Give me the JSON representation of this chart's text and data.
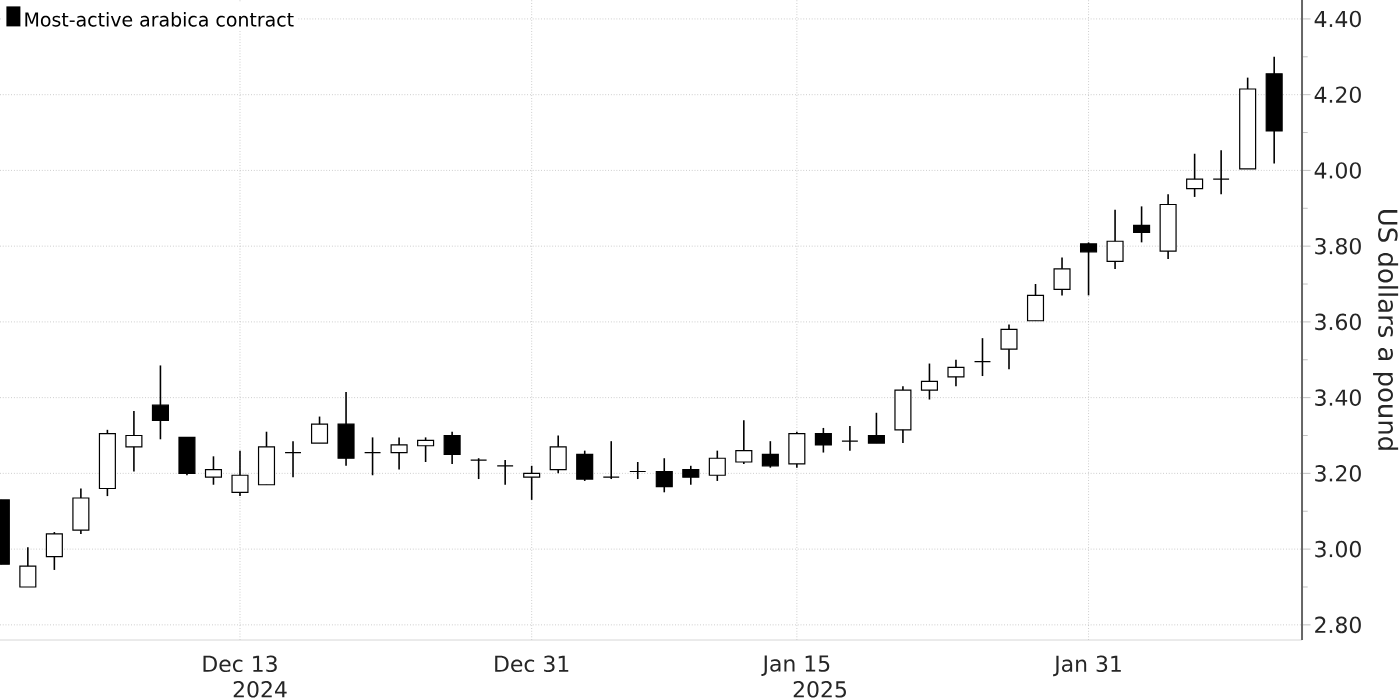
{
  "chart_data": {
    "type": "candlestick",
    "ylabel": "US dollars a pound",
    "categories": [
      null,
      null,
      null,
      null,
      null,
      null,
      null,
      null,
      null,
      "Dec 13",
      null,
      null,
      null,
      null,
      null,
      null,
      null,
      null,
      null,
      null,
      "Dec 31",
      null,
      null,
      null,
      null,
      null,
      null,
      null,
      null,
      null,
      "Jan 15",
      null,
      null,
      null,
      null,
      null,
      null,
      null,
      null,
      null,
      null,
      "Jan 31",
      null,
      null,
      null,
      null,
      null,
      null,
      null
    ],
    "series": [
      {
        "name": "Most-active arabica contract",
        "color": "#000000",
        "ohlc": [
          [
            3.13,
            3.13,
            2.96,
            2.96
          ],
          [
            2.9,
            3.005,
            2.9,
            2.955
          ],
          [
            2.98,
            3.045,
            2.945,
            3.04
          ],
          [
            3.05,
            3.16,
            3.04,
            3.135
          ],
          [
            3.16,
            3.315,
            3.14,
            3.305
          ],
          [
            3.27,
            3.365,
            3.205,
            3.3
          ],
          [
            3.38,
            3.485,
            3.29,
            3.34
          ],
          [
            3.295,
            3.295,
            3.195,
            3.2
          ],
          [
            3.19,
            3.245,
            3.17,
            3.21
          ],
          [
            3.15,
            3.26,
            3.14,
            3.195
          ],
          [
            3.17,
            3.31,
            3.17,
            3.27
          ],
          [
            3.255,
            3.285,
            3.19,
            3.255
          ],
          [
            3.28,
            3.35,
            3.28,
            3.33
          ],
          [
            3.33,
            3.415,
            3.22,
            3.24
          ],
          [
            3.255,
            3.295,
            3.195,
            3.255
          ],
          [
            3.255,
            3.295,
            3.21,
            3.275
          ],
          [
            3.273,
            3.295,
            3.23,
            3.287
          ],
          [
            3.3,
            3.31,
            3.225,
            3.25
          ],
          [
            3.235,
            3.24,
            3.185,
            3.235
          ],
          [
            3.22,
            3.235,
            3.17,
            3.22
          ],
          [
            3.19,
            3.22,
            3.13,
            3.2
          ],
          [
            3.21,
            3.3,
            3.2,
            3.27
          ],
          [
            3.25,
            3.26,
            3.18,
            3.185
          ],
          [
            3.19,
            3.285,
            3.185,
            3.19
          ],
          [
            3.205,
            3.23,
            3.185,
            3.205
          ],
          [
            3.205,
            3.24,
            3.15,
            3.165
          ],
          [
            3.21,
            3.22,
            3.17,
            3.19
          ],
          [
            3.195,
            3.26,
            3.18,
            3.24
          ],
          [
            3.23,
            3.34,
            3.225,
            3.26
          ],
          [
            3.25,
            3.285,
            3.215,
            3.22
          ],
          [
            3.225,
            3.31,
            3.215,
            3.305
          ],
          [
            3.305,
            3.32,
            3.255,
            3.275
          ],
          [
            3.285,
            3.325,
            3.26,
            3.285
          ],
          [
            3.3,
            3.36,
            3.28,
            3.28
          ],
          [
            3.315,
            3.43,
            3.28,
            3.42
          ],
          [
            3.42,
            3.49,
            3.395,
            3.443
          ],
          [
            3.455,
            3.5,
            3.43,
            3.48
          ],
          [
            3.495,
            3.557,
            3.457,
            3.495
          ],
          [
            3.528,
            3.593,
            3.475,
            3.58
          ],
          [
            3.603,
            3.7,
            3.603,
            3.67
          ],
          [
            3.686,
            3.77,
            3.67,
            3.74
          ],
          [
            3.806,
            3.81,
            3.67,
            3.785
          ],
          [
            3.76,
            3.896,
            3.74,
            3.813
          ],
          [
            3.855,
            3.905,
            3.81,
            3.836
          ],
          [
            3.787,
            3.937,
            3.766,
            3.91
          ],
          [
            3.952,
            4.044,
            3.93,
            3.977
          ],
          [
            3.977,
            4.053,
            3.937,
            3.977
          ],
          [
            4.004,
            4.245,
            4.004,
            4.215
          ],
          [
            4.255,
            4.3,
            4.018,
            4.104
          ]
        ]
      }
    ],
    "ylim": [
      2.76,
      4.45
    ],
    "yticks": [
      {
        "value": 2.8,
        "label": "2.80"
      },
      {
        "value": 3.0,
        "label": "3.00"
      },
      {
        "value": 3.2,
        "label": "3.20"
      },
      {
        "value": 3.4,
        "label": "3.40"
      },
      {
        "value": 3.6,
        "label": "3.60"
      },
      {
        "value": 3.8,
        "label": "3.80"
      },
      {
        "value": 4.0,
        "label": "4.00"
      },
      {
        "value": 4.2,
        "label": "4.20"
      },
      {
        "value": 4.4,
        "label": "4.40"
      }
    ],
    "grid": true,
    "legend": "top left",
    "annotations": [
      "2024",
      "2025"
    ]
  }
}
